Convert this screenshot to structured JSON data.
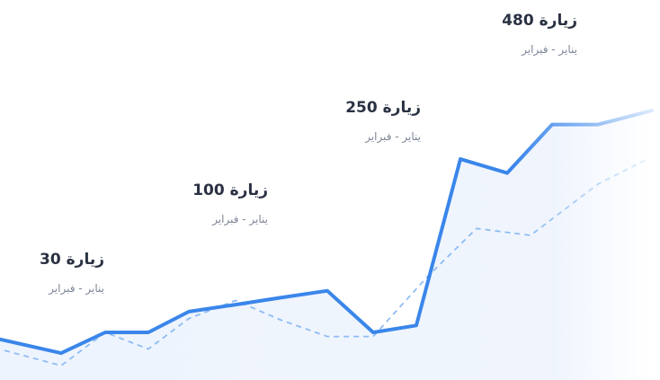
{
  "chart_data": {
    "type": "line",
    "colors": {
      "primary": "#3a86ea",
      "secondary": "#8ebcf3",
      "area": "#eaf2fd",
      "divider": "#e6eaf0"
    },
    "series": [
      {
        "values": [
          300,
          290,
          305,
          305,
          320,
          325,
          330,
          335,
          305,
          310,
          430,
          420,
          455,
          455,
          465
        ]
      },
      {
        "values": [
          292,
          281,
          305,
          293,
          315,
          328,
          314,
          302,
          302,
          345,
          380,
          375,
          412,
          430
        ]
      }
    ],
    "annotations": [
      {
        "value": "زيارة 30",
        "sub": "يناير - فبراير"
      },
      {
        "value": "زيارة 100",
        "sub": "يناير - فبراير"
      },
      {
        "value": "زيارة 250",
        "sub": "يناير - فبراير"
      },
      {
        "value": "زيارة 480",
        "sub": "يناير - فبراير"
      }
    ]
  }
}
